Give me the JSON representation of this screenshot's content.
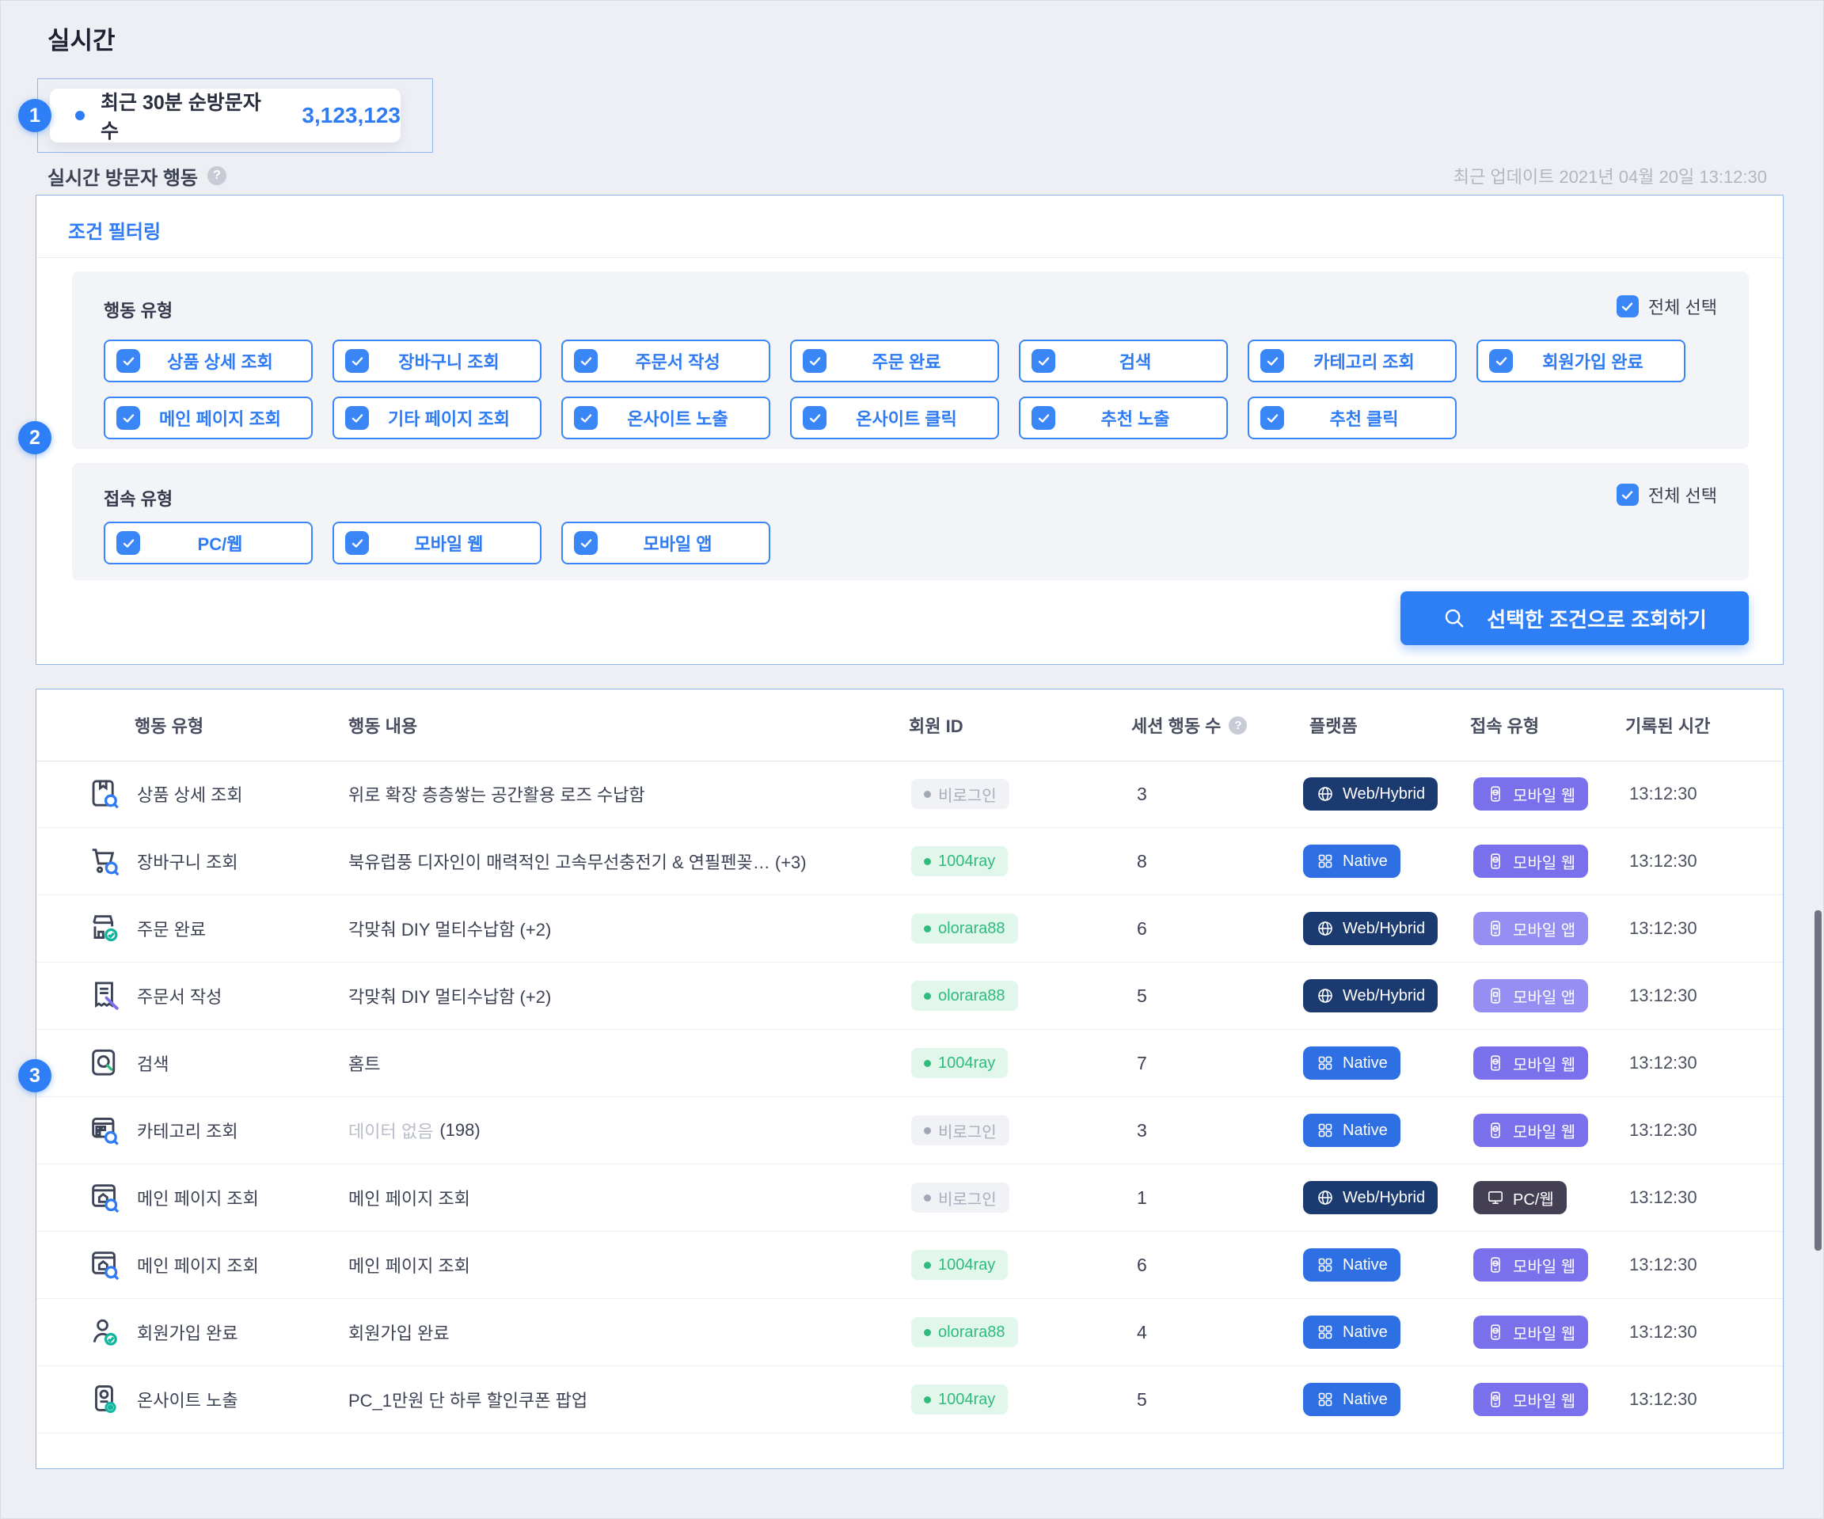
{
  "page": {
    "title": "실시간"
  },
  "annotations": {
    "one": "1",
    "two": "2",
    "three": "3"
  },
  "stat_card": {
    "label": "최근 30분 순방문자 수",
    "value": "3,123,123"
  },
  "section": {
    "title": "실시간 방문자 행동",
    "updated": "최근 업데이트 2021년 04월 20일 13:12:30"
  },
  "filter": {
    "title": "조건 필터링",
    "select_all_label": "전체 선택",
    "action_group_label": "행동 유형",
    "access_group_label": "접속 유형",
    "action_rows": [
      [
        "상품 상세 조회",
        "장바구니 조회",
        "주문서 작성",
        "주문 완료",
        "검색",
        "카테고리 조회",
        "회원가입 완료"
      ],
      [
        "메인 페이지 조회",
        "기타 페이지 조회",
        "온사이트 노출",
        "온사이트 클릭",
        "추천 노출",
        "추천 클릭"
      ]
    ],
    "access_rows": [
      [
        "PC/웹",
        "모바일 웹",
        "모바일 앱"
      ]
    ],
    "search_button_label": "선택한 조건으로 조회하기"
  },
  "table": {
    "columns": [
      "행동 유형",
      "행동 내용",
      "회원 ID",
      "세션 행동 수",
      "플랫폼",
      "접속 유형",
      "기록된 시간"
    ],
    "rows": [
      {
        "icon": "product-detail",
        "action": "상품 상세 조회",
        "content": "위로 확장 층층쌓는 공간활용 로즈 수납함",
        "member": {
          "text": "비로그인",
          "type": "guest"
        },
        "sessions": "3",
        "platform": {
          "text": "Web/Hybrid",
          "type": "hybrid"
        },
        "access": {
          "text": "모바일 웹",
          "type": "mobile-web"
        },
        "time": "13:12:30"
      },
      {
        "icon": "cart",
        "action": "장바구니 조회",
        "content": "북유럽풍 디자인이 매력적인 고속무선충전기 & 연필펜꽂… (+3)",
        "member": {
          "text": "1004ray",
          "type": "user"
        },
        "sessions": "8",
        "platform": {
          "text": "Native",
          "type": "native"
        },
        "access": {
          "text": "모바일 웹",
          "type": "mobile-web"
        },
        "time": "13:12:30"
      },
      {
        "icon": "order-complete",
        "action": "주문 완료",
        "content": "각맞춰 DIY 멀티수납함 (+2)",
        "member": {
          "text": "olorara88",
          "type": "user"
        },
        "sessions": "6",
        "platform": {
          "text": "Web/Hybrid",
          "type": "hybrid"
        },
        "access": {
          "text": "모바일 앱",
          "type": "mobile-app"
        },
        "time": "13:12:30"
      },
      {
        "icon": "order-form",
        "action": "주문서 작성",
        "content": "각맞춰 DIY 멀티수납함 (+2)",
        "member": {
          "text": "olorara88",
          "type": "user"
        },
        "sessions": "5",
        "platform": {
          "text": "Web/Hybrid",
          "type": "hybrid"
        },
        "access": {
          "text": "모바일 앱",
          "type": "mobile-app"
        },
        "time": "13:12:30"
      },
      {
        "icon": "search",
        "action": "검색",
        "content": "홈트",
        "member": {
          "text": "1004ray",
          "type": "user"
        },
        "sessions": "7",
        "platform": {
          "text": "Native",
          "type": "native"
        },
        "access": {
          "text": "모바일 웹",
          "type": "mobile-web"
        },
        "time": "13:12:30"
      },
      {
        "icon": "category",
        "action": "카테고리 조회",
        "content_muted": "데이터 없음",
        "content": "(198)",
        "member": {
          "text": "비로그인",
          "type": "guest"
        },
        "sessions": "3",
        "platform": {
          "text": "Native",
          "type": "native"
        },
        "access": {
          "text": "모바일 웹",
          "type": "mobile-web"
        },
        "time": "13:12:30"
      },
      {
        "icon": "main-page",
        "action": "메인 페이지 조회",
        "content": "메인 페이지 조회",
        "member": {
          "text": "비로그인",
          "type": "guest"
        },
        "sessions": "1",
        "platform": {
          "text": "Web/Hybrid",
          "type": "hybrid"
        },
        "access": {
          "text": "PC/웹",
          "type": "pc-web"
        },
        "time": "13:12:30"
      },
      {
        "icon": "main-page",
        "action": "메인 페이지 조회",
        "content": "메인 페이지 조회",
        "member": {
          "text": "1004ray",
          "type": "user"
        },
        "sessions": "6",
        "platform": {
          "text": "Native",
          "type": "native"
        },
        "access": {
          "text": "모바일 웹",
          "type": "mobile-web"
        },
        "time": "13:12:30"
      },
      {
        "icon": "signup",
        "action": "회원가입 완료",
        "content": "회원가입 완료",
        "member": {
          "text": "olorara88",
          "type": "user"
        },
        "sessions": "4",
        "platform": {
          "text": "Native",
          "type": "native"
        },
        "access": {
          "text": "모바일 웹",
          "type": "mobile-web"
        },
        "time": "13:12:30"
      },
      {
        "icon": "onsite",
        "action": "온사이트 노출",
        "content": "PC_1만원 단 하루 할인쿠폰 팝업",
        "member": {
          "text": "1004ray",
          "type": "user"
        },
        "sessions": "5",
        "platform": {
          "text": "Native",
          "type": "native"
        },
        "access": {
          "text": "모바일 웹",
          "type": "mobile-web"
        },
        "time": "13:12:30"
      }
    ]
  },
  "colors": {
    "accent": "#2e7bf3",
    "hybrid_badge": "#1b3a70",
    "native_badge": "#2f6fe4",
    "mobile_web_badge": "#7b70ec",
    "mobile_app_badge": "#968ef2",
    "pc_web_badge": "#453f54",
    "member_user": "#2fbb7d",
    "member_guest": "#a9aebc"
  }
}
